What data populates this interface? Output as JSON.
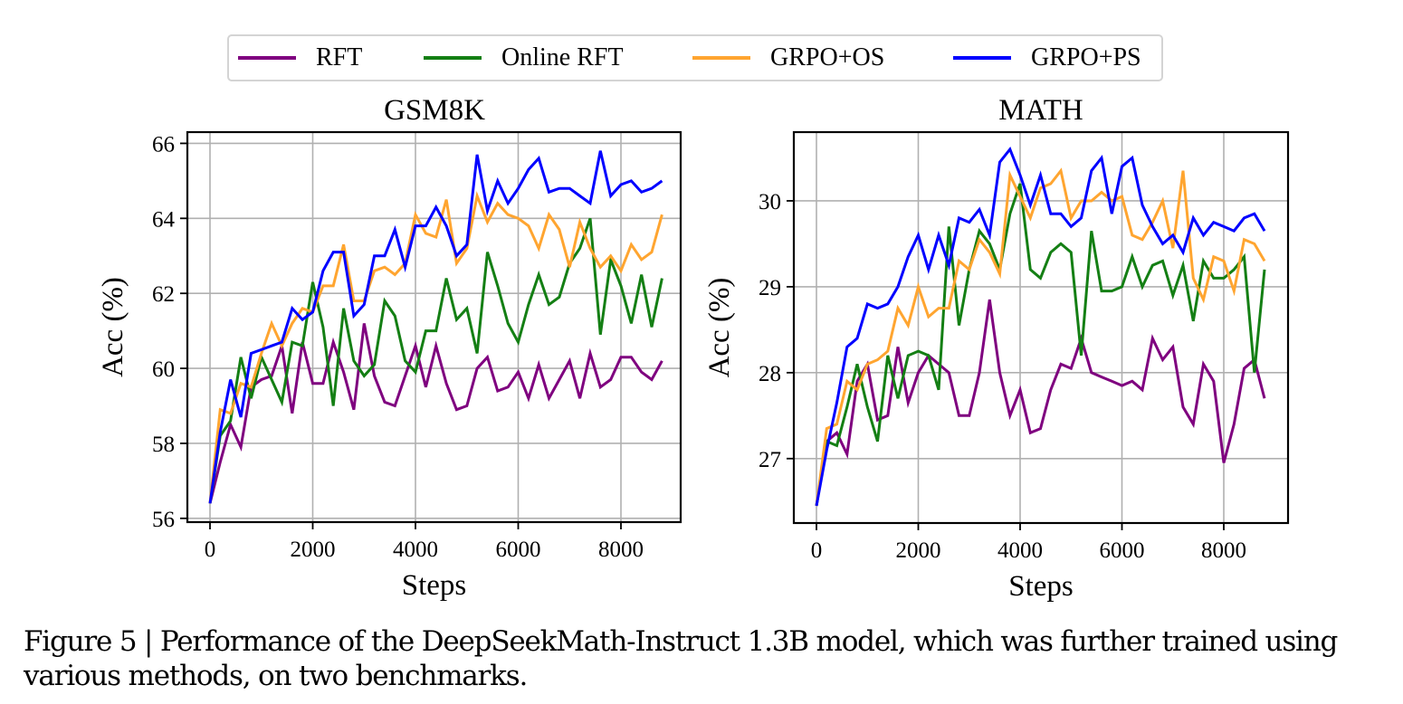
{
  "legend": {
    "items": [
      {
        "label": "RFT",
        "color": "#7f007f"
      },
      {
        "label": "Online RFT",
        "color": "#147f14"
      },
      {
        "label": "GRPO+OS",
        "color": "#ffa530"
      },
      {
        "label": "GRPO+PS",
        "color": "#0000ff"
      }
    ]
  },
  "caption": "Figure 5 | Performance of the DeepSeekMath-Instruct 1.3B model, which was further trained using various methods, on two benchmarks.",
  "chart_data": [
    {
      "type": "line",
      "title": "GSM8K",
      "xlabel": "Steps",
      "ylabel": "Acc (%)",
      "xlim": [
        -400,
        9300
      ],
      "ylim": [
        55.9,
        66.3
      ],
      "xticks": [
        0,
        2000,
        4000,
        6000,
        8000
      ],
      "yticks": [
        56,
        58,
        60,
        62,
        64,
        66
      ],
      "grid": true,
      "x": [
        0,
        200,
        400,
        600,
        800,
        1000,
        1200,
        1400,
        1600,
        1800,
        2000,
        2200,
        2400,
        2600,
        2800,
        3000,
        3200,
        3400,
        3600,
        3800,
        4000,
        4200,
        4400,
        4600,
        4800,
        5000,
        5200,
        5400,
        5600,
        5800,
        6000,
        6200,
        6400,
        6600,
        6800,
        7000,
        7200,
        7400,
        7600,
        7800,
        8000,
        8200,
        8400,
        8600,
        8800
      ],
      "series": [
        {
          "name": "RFT",
          "values": [
            56.4,
            57.5,
            58.5,
            57.9,
            59.5,
            59.7,
            59.8,
            60.6,
            58.8,
            60.7,
            59.6,
            59.6,
            60.7,
            59.9,
            58.9,
            61.2,
            59.8,
            59.1,
            59.0,
            59.8,
            60.6,
            59.5,
            60.6,
            59.6,
            58.9,
            59.0,
            60.0,
            60.3,
            59.4,
            59.5,
            59.9,
            59.2,
            60.1,
            59.2,
            59.7,
            60.2,
            59.2,
            60.4,
            59.5,
            59.7,
            60.3,
            60.3,
            59.9,
            59.7,
            60.2
          ]
        },
        {
          "name": "Online RFT",
          "values": [
            56.4,
            58.2,
            58.6,
            60.3,
            59.2,
            60.3,
            59.7,
            59.1,
            60.7,
            60.6,
            62.3,
            61.1,
            59.0,
            61.6,
            60.2,
            59.8,
            60.1,
            61.8,
            61.4,
            60.2,
            59.9,
            61.0,
            61.0,
            62.4,
            61.3,
            61.6,
            60.4,
            63.1,
            62.2,
            61.2,
            60.7,
            61.7,
            62.5,
            61.7,
            61.9,
            62.8,
            63.2,
            64.0,
            60.9,
            62.9,
            62.2,
            61.2,
            62.5,
            61.1,
            62.4
          ]
        },
        {
          "name": "GRPO+OS",
          "values": [
            56.4,
            58.9,
            58.8,
            59.6,
            59.5,
            60.4,
            61.2,
            60.6,
            61.2,
            61.6,
            61.5,
            62.2,
            62.2,
            63.3,
            61.8,
            61.8,
            62.6,
            62.7,
            62.5,
            62.8,
            64.1,
            63.6,
            63.5,
            64.5,
            62.8,
            63.2,
            64.6,
            63.9,
            64.4,
            64.1,
            64.0,
            63.8,
            63.2,
            64.1,
            63.7,
            62.7,
            63.9,
            63.2,
            62.7,
            63.0,
            62.6,
            63.3,
            62.9,
            63.1,
            64.1
          ]
        },
        {
          "name": "GRPO+PS",
          "values": [
            56.4,
            58.3,
            59.7,
            58.7,
            60.4,
            60.5,
            60.6,
            60.7,
            61.6,
            61.3,
            61.5,
            62.6,
            63.1,
            63.1,
            61.4,
            61.7,
            63.0,
            63.0,
            63.7,
            62.7,
            63.8,
            63.8,
            64.3,
            63.8,
            63.0,
            63.3,
            65.7,
            64.2,
            65.0,
            64.4,
            64.8,
            65.3,
            65.6,
            64.7,
            64.8,
            64.8,
            64.6,
            64.4,
            65.8,
            64.6,
            64.9,
            65.0,
            64.7,
            64.8,
            65.0
          ]
        }
      ]
    },
    {
      "type": "line",
      "title": "MATH",
      "xlabel": "Steps",
      "ylabel": "Acc (%)",
      "xlim": [
        -400,
        9300
      ],
      "ylim": [
        26.25,
        30.8
      ],
      "xticks": [
        0,
        2000,
        4000,
        6000,
        8000
      ],
      "yticks": [
        27,
        28,
        29,
        30
      ],
      "grid": true,
      "x": [
        0,
        200,
        400,
        600,
        800,
        1000,
        1200,
        1400,
        1600,
        1800,
        2000,
        2200,
        2400,
        2600,
        2800,
        3000,
        3200,
        3400,
        3600,
        3800,
        4000,
        4200,
        4400,
        4600,
        4800,
        5000,
        5200,
        5400,
        5600,
        5800,
        6000,
        6200,
        6400,
        6600,
        6800,
        7000,
        7200,
        7400,
        7600,
        7800,
        8000,
        8200,
        8400,
        8600,
        8800
      ],
      "series": [
        {
          "name": "RFT",
          "values": [
            26.45,
            27.2,
            27.3,
            27.05,
            27.9,
            28.1,
            27.45,
            27.5,
            28.3,
            27.65,
            28.0,
            28.2,
            28.1,
            28.0,
            27.5,
            27.5,
            28.0,
            28.85,
            28.0,
            27.5,
            27.8,
            27.3,
            27.35,
            27.8,
            28.1,
            28.05,
            28.4,
            28.0,
            27.95,
            27.9,
            27.85,
            27.9,
            27.8,
            28.4,
            28.15,
            28.3,
            27.6,
            27.4,
            28.1,
            27.9,
            26.95,
            27.4,
            28.05,
            28.15,
            27.7
          ]
        },
        {
          "name": "Online RFT",
          "values": [
            26.45,
            27.2,
            27.15,
            27.6,
            28.1,
            27.6,
            27.2,
            28.2,
            27.7,
            28.2,
            28.25,
            28.2,
            27.8,
            29.7,
            28.55,
            29.2,
            29.65,
            29.5,
            29.2,
            29.85,
            30.2,
            29.2,
            29.1,
            29.4,
            29.5,
            29.4,
            28.2,
            29.65,
            28.95,
            28.95,
            29.0,
            29.35,
            29.0,
            29.25,
            29.3,
            28.9,
            29.25,
            28.6,
            29.3,
            29.1,
            29.1,
            29.2,
            29.35,
            28.0,
            29.2
          ]
        },
        {
          "name": "GRPO+OS",
          "values": [
            26.45,
            27.35,
            27.4,
            27.9,
            27.8,
            28.1,
            28.15,
            28.25,
            28.75,
            28.55,
            29.0,
            28.65,
            28.75,
            28.75,
            29.3,
            29.2,
            29.55,
            29.4,
            29.15,
            30.3,
            30.05,
            29.8,
            30.15,
            30.2,
            30.35,
            29.8,
            30.0,
            30.0,
            30.1,
            30.0,
            30.05,
            29.6,
            29.55,
            29.75,
            30.0,
            29.45,
            30.35,
            29.1,
            28.85,
            29.35,
            29.3,
            28.95,
            29.55,
            29.5,
            29.3
          ]
        },
        {
          "name": "GRPO+PS",
          "values": [
            26.45,
            27.1,
            27.65,
            28.3,
            28.4,
            28.8,
            28.75,
            28.8,
            29.0,
            29.35,
            29.6,
            29.2,
            29.6,
            29.25,
            29.8,
            29.75,
            29.9,
            29.6,
            30.45,
            30.6,
            30.3,
            29.95,
            30.3,
            29.85,
            29.85,
            29.7,
            29.8,
            30.35,
            30.5,
            29.85,
            30.4,
            30.5,
            29.95,
            29.7,
            29.5,
            29.6,
            29.4,
            29.8,
            29.6,
            29.75,
            29.7,
            29.65,
            29.8,
            29.85,
            29.65
          ]
        }
      ]
    }
  ]
}
